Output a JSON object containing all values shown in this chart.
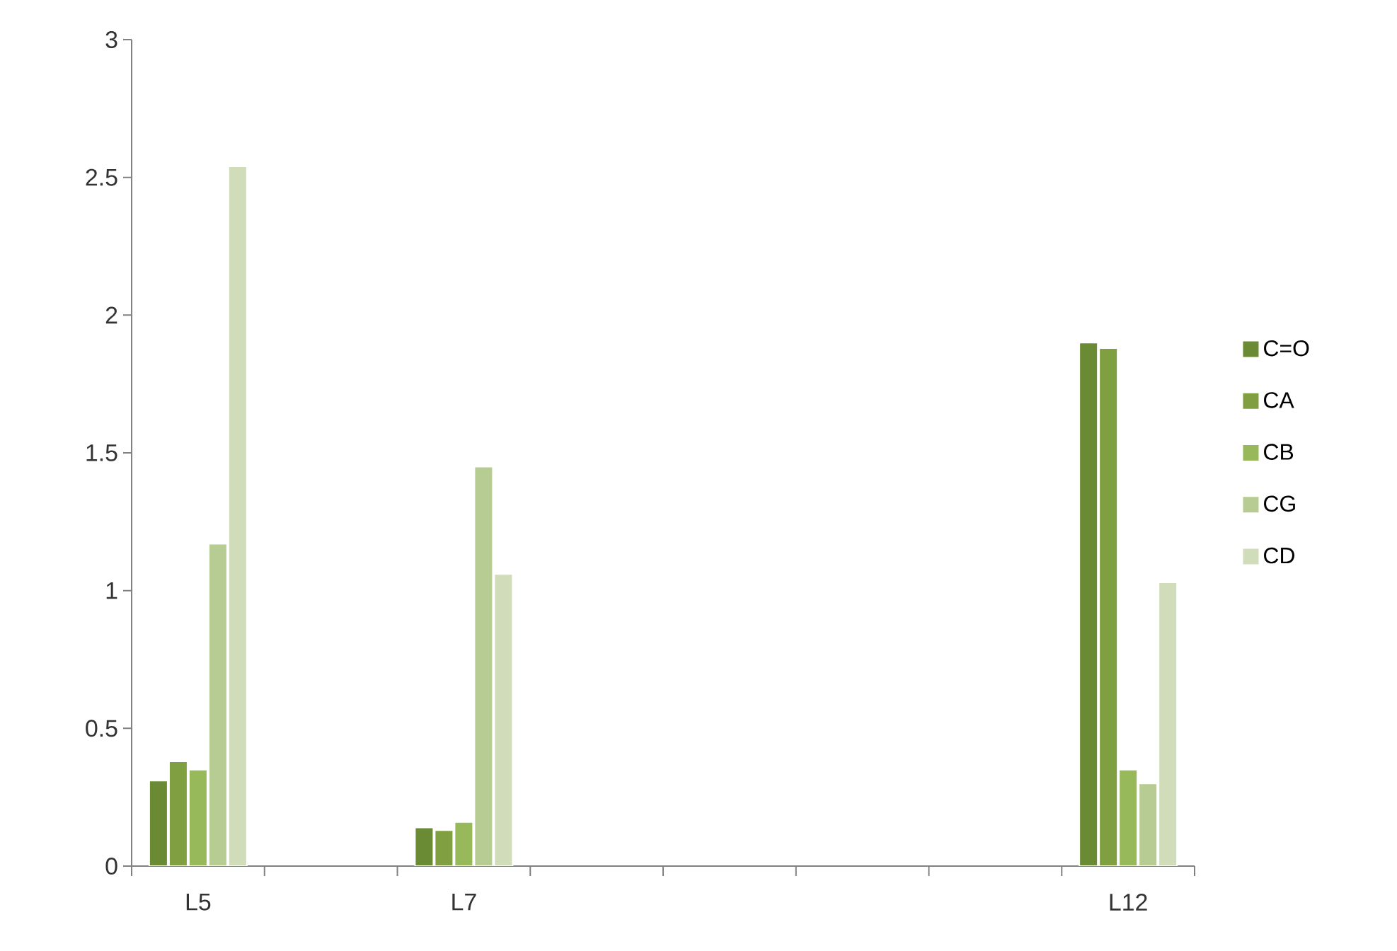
{
  "chart_data": {
    "type": "bar",
    "categories": [
      "L5",
      null,
      "L7",
      null,
      null,
      null,
      null,
      "L12"
    ],
    "series": [
      {
        "name": "C=O",
        "color": "#6b8a34",
        "values": [
          0.31,
          null,
          0.14,
          null,
          null,
          null,
          null,
          1.9
        ]
      },
      {
        "name": "CA",
        "color": "#7f9f40",
        "values": [
          0.38,
          null,
          0.13,
          null,
          null,
          null,
          null,
          1.88
        ]
      },
      {
        "name": "CB",
        "color": "#98b95a",
        "values": [
          0.35,
          null,
          0.16,
          null,
          null,
          null,
          null,
          0.35
        ]
      },
      {
        "name": "CG",
        "color": "#b7cc92",
        "values": [
          1.17,
          null,
          1.45,
          null,
          null,
          null,
          null,
          0.3
        ]
      },
      {
        "name": "CD",
        "color": "#d0dcba",
        "values": [
          2.54,
          null,
          1.06,
          null,
          null,
          null,
          null,
          1.03
        ]
      }
    ],
    "ylim": [
      0,
      3
    ],
    "yticks": [
      0,
      0.5,
      1,
      1.5,
      2,
      2.5,
      3
    ],
    "grid": false,
    "legend": "right"
  }
}
